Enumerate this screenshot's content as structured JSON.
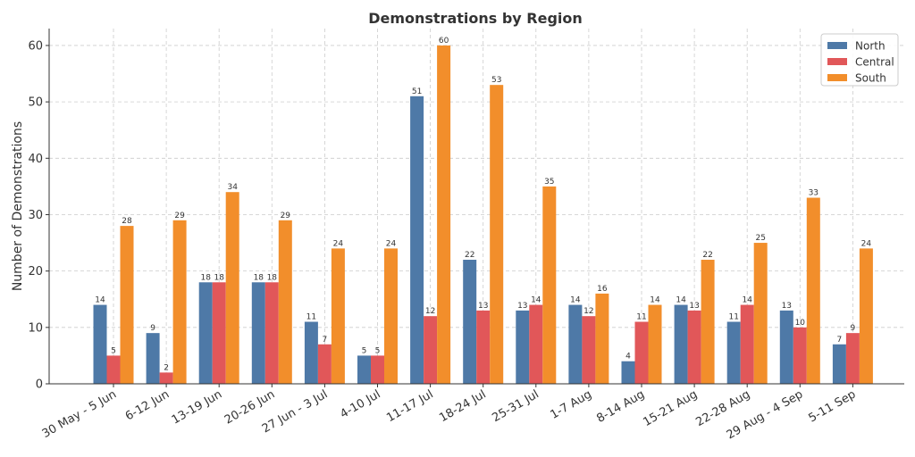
{
  "chart_data": {
    "type": "bar",
    "title": "Demonstrations by Region",
    "xlabel": "",
    "ylabel": "Number of Demonstrations",
    "ylim": [
      0,
      63
    ],
    "yticks": [
      0,
      10,
      20,
      30,
      40,
      50,
      60
    ],
    "grid": true,
    "legend_position": "top-right",
    "categories": [
      "30 May - 5 Jun",
      "6-12 Jun",
      "13-19 Jun",
      "20-26 Jun",
      "27 Jun - 3 Jul",
      "4-10 Jul",
      "11-17 Jul",
      "18-24 Jul",
      "25-31 Jul",
      "1-7 Aug",
      "8-14 Aug",
      "15-21 Aug",
      "22-28 Aug",
      "29 Aug - 4 Sep",
      "5-11 Sep"
    ],
    "series": [
      {
        "name": "North",
        "color": "#4e79a7",
        "values": [
          14,
          9,
          18,
          18,
          11,
          5,
          51,
          22,
          13,
          14,
          4,
          14,
          11,
          13,
          7
        ]
      },
      {
        "name": "Central",
        "color": "#e15759",
        "values": [
          5,
          2,
          18,
          18,
          7,
          5,
          12,
          13,
          14,
          12,
          11,
          13,
          14,
          10,
          9
        ]
      },
      {
        "name": "South",
        "color": "#f28e2b",
        "values": [
          28,
          29,
          34,
          29,
          24,
          24,
          60,
          53,
          35,
          16,
          14,
          22,
          25,
          33,
          24
        ]
      }
    ]
  }
}
